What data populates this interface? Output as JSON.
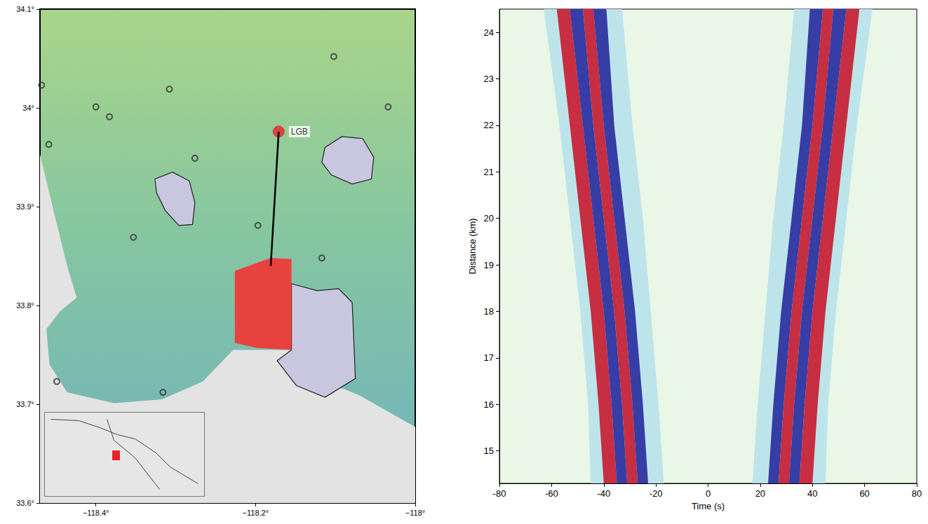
{
  "chart_data": [
    {
      "type": "map",
      "xlim": [
        -118.47,
        -118.0
      ],
      "ylim": [
        33.6,
        34.1
      ],
      "xticks": [
        {
          "value": -118.4,
          "label": "−118.4°"
        },
        {
          "value": -118.2,
          "label": "−118.2°"
        },
        {
          "value": -118.0,
          "label": "−118°"
        }
      ],
      "yticks": [
        {
          "value": 33.6,
          "label": "33.6°"
        },
        {
          "value": 33.7,
          "label": "33.7°"
        },
        {
          "value": 33.8,
          "label": "33.8°"
        },
        {
          "value": 33.9,
          "label": "33.9°"
        },
        {
          "value": 34.0,
          "label": "34°"
        },
        {
          "value": 34.1,
          "label": "34.1°"
        }
      ],
      "series": [
        {
          "type": "polygon",
          "color": "#e3e3e3",
          "polygons": [
            [
              [
                -118.47,
                33.953
              ],
              [
                -118.453,
                33.896
              ],
              [
                -118.436,
                33.84
              ],
              [
                -118.424,
                33.808
              ],
              [
                -118.445,
                33.794
              ],
              [
                -118.462,
                33.776
              ],
              [
                -118.458,
                33.74
              ],
              [
                -118.436,
                33.712
              ],
              [
                -118.377,
                33.701
              ],
              [
                -118.317,
                33.705
              ],
              [
                -118.266,
                33.723
              ],
              [
                -118.228,
                33.755
              ],
              [
                -118.156,
                33.755
              ],
              [
                -118.113,
                33.723
              ],
              [
                -118.07,
                33.709
              ],
              [
                -118.0,
                33.677
              ],
              [
                -118.0,
                33.6
              ],
              [
                -118.47,
                33.6
              ]
            ]
          ]
        },
        {
          "type": "polygon",
          "color": "#c9c7e0",
          "line_style": "solid",
          "polygons": [
            [
              [
                -118.326,
                33.928
              ],
              [
                -118.304,
                33.935
              ],
              [
                -118.283,
                33.926
              ],
              [
                -118.276,
                33.904
              ],
              [
                -118.279,
                33.882
              ],
              [
                -118.296,
                33.881
              ],
              [
                -118.313,
                33.896
              ],
              [
                -118.324,
                33.914
              ]
            ],
            [
              [
                -118.113,
                33.96
              ],
              [
                -118.092,
                33.971
              ],
              [
                -118.066,
                33.969
              ],
              [
                -118.052,
                33.95
              ],
              [
                -118.055,
                33.928
              ],
              [
                -118.079,
                33.923
              ],
              [
                -118.105,
                33.932
              ],
              [
                -118.117,
                33.945
              ]
            ],
            [
              [
                -118.155,
                33.822
              ],
              [
                -118.123,
                33.815
              ],
              [
                -118.096,
                33.817
              ],
              [
                -118.079,
                33.803
              ],
              [
                -118.075,
                33.726
              ],
              [
                -118.113,
                33.707
              ],
              [
                -118.149,
                33.719
              ],
              [
                -118.173,
                33.744
              ],
              [
                -118.155,
                33.755
              ]
            ]
          ]
        },
        {
          "type": "polygon",
          "color": "#e8423f",
          "polygons": [
            [
              [
                -118.226,
                33.835
              ],
              [
                -118.181,
                33.848
              ],
              [
                -118.155,
                33.847
              ],
              [
                -118.155,
                33.755
              ],
              [
                -118.198,
                33.757
              ],
              [
                -118.226,
                33.762
              ]
            ]
          ]
        },
        {
          "type": "line",
          "color": "#000000",
          "x": [
            -118.171,
            -118.181
          ],
          "y": [
            33.976,
            33.84
          ]
        },
        {
          "type": "scatter",
          "marker": "circle-open",
          "color": "#333333",
          "x": [
            -118.468,
            -118.4,
            -118.383,
            -118.459,
            -118.308,
            -118.276,
            -118.102,
            -118.034,
            -118.353,
            -118.197,
            -118.117,
            -118.449,
            -118.316
          ],
          "y": [
            34.023,
            34.001,
            33.991,
            33.963,
            34.019,
            33.949,
            34.052,
            34.001,
            33.869,
            33.881,
            33.848,
            33.723,
            33.712
          ]
        },
        {
          "type": "scatter",
          "marker": "circle",
          "color": "#e8262a",
          "x": [
            -118.171
          ],
          "y": [
            33.976
          ],
          "labels": [
            "LGB"
          ]
        }
      ]
    },
    {
      "type": "record_section",
      "xlabel": "Time (s)",
      "ylabel": "Distance (km)",
      "xlim": [
        -80,
        80
      ],
      "ylim": [
        14.3,
        24.5
      ],
      "xticks": [
        -80,
        -60,
        -40,
        -20,
        0,
        20,
        40,
        60,
        80
      ],
      "yticks": [
        15,
        16,
        17,
        18,
        19,
        20,
        21,
        22,
        23,
        24
      ],
      "distance": [
        14.3,
        16,
        18,
        20,
        22,
        24.5
      ],
      "series": [
        {
          "color": "#b8e2ea",
          "lower": [
            -45,
            -46,
            -49,
            -53,
            -57,
            -63
          ],
          "upper": [
            -17,
            -19,
            -22,
            -25,
            -29,
            -33
          ]
        },
        {
          "color": "#c81e32",
          "lower": [
            -40,
            -42,
            -45,
            -49,
            -53,
            -58
          ],
          "upper": [
            -35,
            -37,
            -40,
            -44,
            -48,
            -53
          ]
        },
        {
          "color": "#2a2f9e",
          "lower": [
            -35,
            -37,
            -40,
            -44,
            -48,
            -53
          ],
          "upper": [
            -31,
            -33,
            -36,
            -40,
            -44,
            -48
          ]
        },
        {
          "color": "#c81e32",
          "lower": [
            -31,
            -33,
            -36,
            -40,
            -44,
            -48
          ],
          "upper": [
            -27,
            -29,
            -32,
            -36,
            -40,
            -44
          ]
        },
        {
          "color": "#2a2f9e",
          "lower": [
            -27,
            -29,
            -32,
            -36,
            -40,
            -44
          ],
          "upper": [
            -23,
            -25,
            -28,
            -32,
            -36,
            -39
          ]
        },
        {
          "color": "#b8e2ea",
          "lower": [
            17,
            19,
            22,
            25,
            29,
            33
          ],
          "upper": [
            45,
            46,
            49,
            53,
            57,
            63
          ]
        },
        {
          "color": "#2a2f9e",
          "lower": [
            23,
            25,
            28,
            32,
            36,
            39
          ],
          "upper": [
            27,
            29,
            32,
            36,
            40,
            44
          ]
        },
        {
          "color": "#c81e32",
          "lower": [
            27,
            29,
            32,
            36,
            40,
            44
          ],
          "upper": [
            31,
            33,
            36,
            40,
            44,
            48
          ]
        },
        {
          "color": "#2a2f9e",
          "lower": [
            31,
            33,
            36,
            40,
            44,
            48
          ],
          "upper": [
            35,
            37,
            40,
            44,
            48,
            53
          ]
        },
        {
          "color": "#c81e32",
          "lower": [
            35,
            37,
            40,
            44,
            48,
            53
          ],
          "upper": [
            40,
            42,
            45,
            49,
            53,
            58
          ]
        }
      ]
    }
  ]
}
